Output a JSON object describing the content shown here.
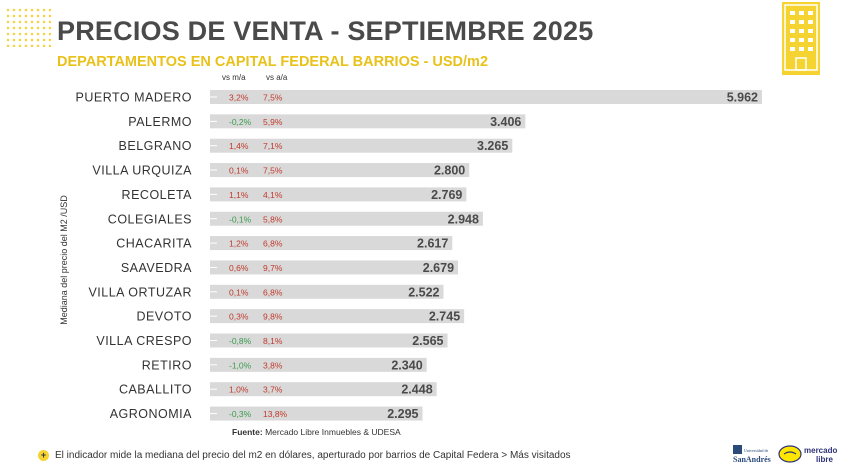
{
  "header": {
    "title": "PRECIOS DE VENTA - SEPTIEMBRE 2025",
    "subtitle": "DEPARTAMENTOS EN CAPITAL FEDERAL BARRIOS - USD/m2",
    "col_mm": "vs m/a",
    "col_aa": "vs a/a"
  },
  "colors": {
    "accent": "#f5d431",
    "bar": "#d9d9d9",
    "negative": "#3a9c4e",
    "positive": "#c0392b",
    "title": "#4a4a4a"
  },
  "chart_data": {
    "type": "bar",
    "orientation": "horizontal",
    "title": "PRECIOS DE VENTA - SEPTIEMBRE 2025",
    "subtitle": "DEPARTAMENTOS EN CAPITAL FEDERAL BARRIOS - USD/m2",
    "ylabel": "Mediana del precio del M2 /USD",
    "categories": [
      "PUERTO MADERO",
      "PALERMO",
      "BELGRANO",
      "VILLA URQUIZA",
      "RECOLETA",
      "COLEGIALES",
      "CHACARITA",
      "SAAVEDRA",
      "VILLA ORTUZAR",
      "DEVOTO",
      "VILLA CRESPO",
      "RETIRO",
      "CABALLITO",
      "AGRONOMIA"
    ],
    "values": [
      5962,
      3406,
      3265,
      2800,
      2769,
      2948,
      2617,
      2679,
      2522,
      2745,
      2565,
      2340,
      2448,
      2295
    ],
    "value_labels": [
      "5.962",
      "3.406",
      "3.265",
      "2.800",
      "2.769",
      "2.948",
      "2.617",
      "2.679",
      "2.522",
      "2.745",
      "2.565",
      "2.340",
      "2.448",
      "2.295"
    ],
    "vs_ma": [
      "3,2%",
      "-0,2%",
      "1,4%",
      "0,1%",
      "1,1%",
      "-0,1%",
      "1,2%",
      "0,6%",
      "0,1%",
      "0,3%",
      "-0,8%",
      "-1,0%",
      "1,0%",
      "-0,3%"
    ],
    "vs_aa": [
      "7,5%",
      "5,9%",
      "7,1%",
      "7,5%",
      "4,1%",
      "5,8%",
      "6,8%",
      "9,7%",
      "6,8%",
      "9,8%",
      "8,1%",
      "3,8%",
      "3,7%",
      "13,8%"
    ],
    "xlim": [
      0,
      5962
    ],
    "grid": false,
    "legend": "none"
  },
  "source": {
    "label": "Fuente:",
    "text": "Mercado Libre Inmuebles & UDESA"
  },
  "footnote": {
    "bullet": "+",
    "text": "El indicador mide la mediana del precio del m2 en dólares, aperturado por barrios de Capital Federa > Más visitados"
  },
  "logos": {
    "udesa_top": "Universidad de",
    "udesa": "SanAndrés",
    "ml_top": "mercado",
    "ml_bottom": "libre"
  }
}
